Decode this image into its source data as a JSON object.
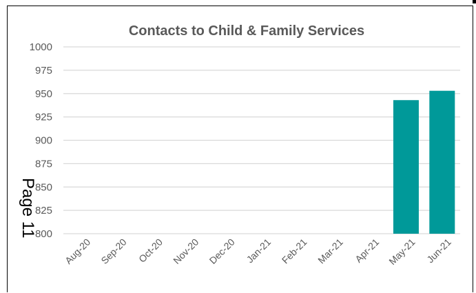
{
  "page_label": "Page 11",
  "chart_data": {
    "type": "bar",
    "title": "Contacts to Child & Family Services",
    "xlabel": "",
    "ylabel": "",
    "categories": [
      "Aug-20",
      "Sep-20",
      "Oct-20",
      "Nov-20",
      "Dec-20",
      "Jan-21",
      "Feb-21",
      "Mar-21",
      "Apr-21",
      "May-21",
      "Jun-21"
    ],
    "values": [
      null,
      null,
      null,
      null,
      null,
      null,
      null,
      null,
      null,
      943,
      953
    ],
    "ylim": [
      800,
      1000
    ],
    "yticks": [
      "1000",
      "975",
      "950",
      "925",
      "900",
      "875",
      "850",
      "825",
      "800"
    ],
    "grid": true,
    "legend": "none",
    "bar_color": "#009999",
    "grid_color": "#d9d9d9",
    "text_color": "#595959"
  }
}
